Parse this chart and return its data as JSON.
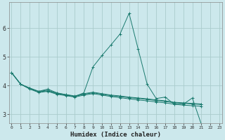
{
  "xlabel": "Humidex (Indice chaleur)",
  "background_color": "#cce8ec",
  "grid_color": "#aacccc",
  "line_color": "#1a7a6e",
  "ylim": [
    2.7,
    6.9
  ],
  "yticks": [
    3,
    4,
    5,
    6
  ],
  "xticks": [
    0,
    1,
    2,
    3,
    4,
    5,
    6,
    7,
    8,
    9,
    10,
    11,
    12,
    13,
    14,
    15,
    16,
    17,
    18,
    19,
    20,
    21,
    22,
    23
  ],
  "spike_line": [
    4.45,
    4.05,
    3.9,
    3.8,
    3.88,
    3.75,
    3.68,
    3.62,
    3.75,
    4.65,
    5.05,
    5.42,
    5.8,
    6.52,
    5.28,
    4.05,
    3.55,
    3.6,
    3.35,
    3.35,
    3.57,
    2.65,
    null,
    null
  ],
  "flat_line1": [
    4.45,
    4.05,
    3.9,
    3.78,
    3.82,
    3.72,
    3.67,
    3.62,
    3.7,
    3.75,
    3.7,
    3.65,
    3.62,
    3.58,
    3.55,
    3.52,
    3.48,
    3.45,
    3.4,
    3.38,
    3.36,
    3.34,
    null,
    null
  ],
  "flat_line2": [
    4.45,
    4.05,
    3.88,
    3.76,
    3.8,
    3.7,
    3.65,
    3.6,
    3.67,
    3.72,
    3.67,
    3.62,
    3.58,
    3.54,
    3.5,
    3.47,
    3.43,
    3.4,
    3.35,
    3.32,
    3.3,
    3.28,
    null,
    null
  ],
  "flat_line3": [
    4.45,
    4.05,
    3.92,
    3.8,
    3.84,
    3.74,
    3.69,
    3.64,
    3.72,
    3.77,
    3.72,
    3.67,
    3.64,
    3.6,
    3.57,
    3.54,
    3.5,
    3.47,
    3.42,
    3.4,
    3.38,
    3.36,
    null,
    null
  ]
}
